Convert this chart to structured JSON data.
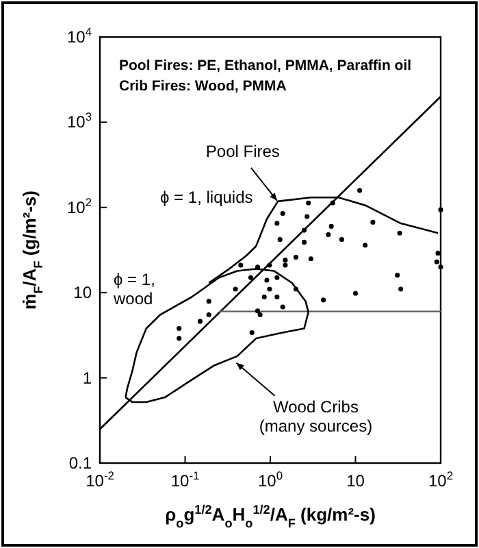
{
  "chart_data": {
    "type": "scatter",
    "xlabel": "ρ$_{o}$g$^{1/2}$A$_{o}$H$_{o}$$^{1/2}$/A$_{F}$ (kg/m²-s)",
    "ylabel": "ṁ$_{F}$/A$_{F}$ (g/m²-s)",
    "log": "xy",
    "grid": false,
    "xlim": [
      0.01,
      100
    ],
    "ylim": [
      0.1,
      10000
    ],
    "xticks": [
      {
        "value": 0.01,
        "label": "10$^{-2}$"
      },
      {
        "value": 0.1,
        "label": "10$^{-1}$"
      },
      {
        "value": 1,
        "label": "10$^{0}$"
      },
      10,
      {
        "value": 100,
        "label": "10$^{2}$"
      }
    ],
    "yticks": [
      0.1,
      1,
      10,
      {
        "value": 100,
        "label": "10$^{2}$"
      },
      {
        "value": 1000,
        "label": "10$^{3}$"
      },
      {
        "value": 10000,
        "label": "10$^{4}$"
      }
    ],
    "series": [
      {
        "color": "#000000",
        "marker": "circle",
        "x": [
          11.2,
          100,
          2.8,
          2.7,
          5.4,
          16,
          33,
          5.2,
          4.8,
          6.9,
          13,
          2.5,
          2.5,
          1.3,
          1.2,
          1.4,
          2.0,
          1.5,
          100,
          93,
          34,
          31,
          10,
          4.2,
          2.0,
          1.2,
          0.98,
          0.91,
          1.2,
          0.85,
          0.71,
          0.76,
          0.61,
          1.4,
          0.59,
          0.39,
          0.45,
          0.98,
          1.5,
          3.0,
          0.085,
          0.085,
          0.19,
          0.19,
          0.15,
          0.71,
          90
        ],
        "values": [
          158,
          94,
          113,
          78,
          113,
          67,
          50,
          60,
          48,
          42,
          36,
          54,
          39,
          42,
          65,
          85,
          26,
          21,
          20,
          29,
          11,
          16,
          9.8,
          8.2,
          11,
          8.9,
          11,
          14,
          15,
          8.9,
          6.1,
          5.5,
          3.4,
          6.8,
          15,
          11,
          21,
          21,
          24,
          25,
          3.8,
          2.9,
          7.9,
          5.5,
          4.6,
          20,
          23
        ]
      },
      {
        "type": "line",
        "color": "#000000",
        "marker": "none",
        "line_style": "solid",
        "x": [
          0.01,
          100
        ],
        "values": [
          0.25,
          2000
        ]
      },
      {
        "type": "line",
        "color": "#666666",
        "marker": "none",
        "line_style": "solid",
        "x": [
          0.25,
          100
        ],
        "values": [
          6,
          6
        ]
      },
      {
        "type": "line",
        "color": "#000000",
        "marker": "none",
        "line_style": "solid",
        "x": [
          0.19,
          0.32,
          0.52,
          0.68,
          0.91,
          1.23,
          3.0,
          6.3,
          13,
          34,
          93
        ],
        "values": [
          13,
          18.6,
          27,
          35,
          73,
          118,
          131,
          131,
          106,
          65,
          50
        ]
      },
      {
        "type": "line",
        "color": "#000000",
        "marker": "none",
        "line_style": "solid",
        "x": [
          0.02,
          0.021,
          0.024,
          0.027,
          0.035,
          0.051,
          0.12,
          0.25,
          0.41,
          0.68,
          1.1,
          1.8,
          2.6,
          2.8
        ],
        "values": [
          0.59,
          0.76,
          1.2,
          2.0,
          3.8,
          5.5,
          8.9,
          15,
          18,
          19,
          18,
          13,
          7.9,
          5.9
        ]
      },
      {
        "type": "line",
        "color": "#000000",
        "marker": "none",
        "line_style": "solid",
        "x": [
          0.02,
          0.024,
          0.035,
          0.058,
          0.12,
          0.22,
          0.41,
          0.68,
          1.4,
          2.5,
          2.8
        ],
        "values": [
          0.59,
          0.52,
          0.52,
          0.59,
          0.95,
          1.4,
          1.8,
          2.9,
          3.4,
          3.8,
          5.9
        ]
      }
    ],
    "annotations": [
      "Pool Fires: PE, Ethanol, PMMA, Paraffin oil",
      "Crib Fires: Wood, PMMA",
      {
        "text": "Pool Fires",
        "x": 1.2,
        "y": 120
      },
      "ϕ = 1, liquids",
      "ϕ = 1,\nwood",
      {
        "text": "Wood Cribs\n(many sources)",
        "x": 0.4,
        "y": 1.5
      }
    ]
  }
}
